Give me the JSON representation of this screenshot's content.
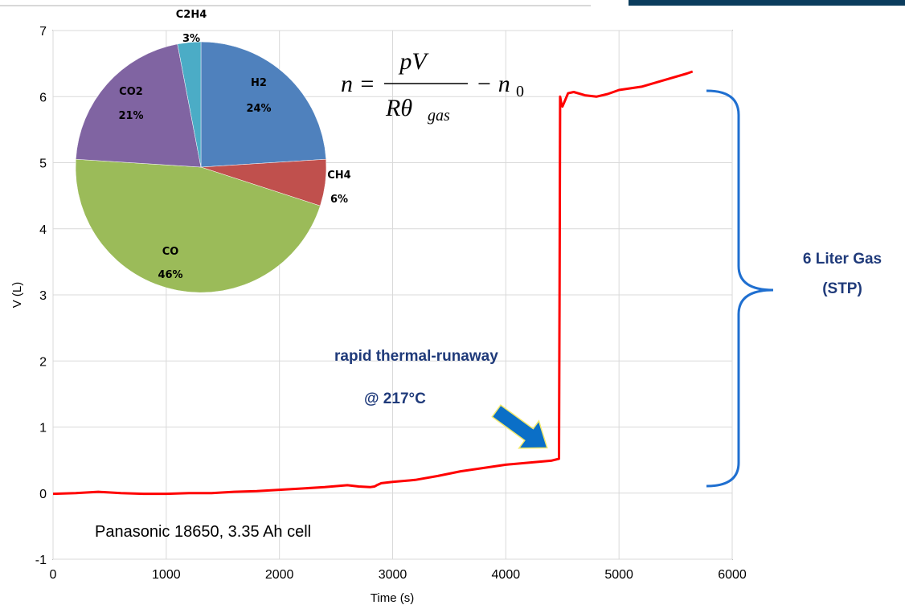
{
  "chart_data": {
    "type": "line",
    "title": "",
    "xlabel": "Time (s)",
    "ylabel": "V (L)",
    "xlim": [
      0,
      6000
    ],
    "ylim": [
      -1,
      7
    ],
    "x_ticks": [
      "0",
      "1000",
      "2000",
      "3000",
      "4000",
      "5000",
      "6000"
    ],
    "y_ticks": [
      "-1",
      "0",
      "1",
      "2",
      "3",
      "4",
      "5",
      "6",
      "7"
    ],
    "grid": true,
    "series": [
      {
        "color": "#ff0000",
        "x": [
          0,
          200,
          400,
          600,
          800,
          1000,
          1200,
          1400,
          1600,
          1800,
          2000,
          2200,
          2400,
          2600,
          2700,
          2800,
          2840,
          2860,
          2900,
          3000,
          3200,
          3400,
          3600,
          3800,
          4000,
          4200,
          4400,
          4470,
          4475,
          4480,
          4490,
          4500,
          4550,
          4600,
          4700,
          4800,
          4900,
          5000,
          5200,
          5400,
          5600,
          5650
        ],
        "y": [
          -0.01,
          0.0,
          0.02,
          0.0,
          -0.01,
          -0.01,
          0.0,
          0.0,
          0.02,
          0.03,
          0.05,
          0.07,
          0.09,
          0.12,
          0.1,
          0.09,
          0.1,
          0.12,
          0.15,
          0.17,
          0.2,
          0.26,
          0.33,
          0.38,
          0.43,
          0.46,
          0.49,
          0.52,
          3.0,
          6.0,
          5.9,
          5.85,
          6.05,
          6.07,
          6.02,
          6.0,
          6.04,
          6.1,
          6.15,
          6.25,
          6.35,
          6.38
        ]
      }
    ],
    "inset_pie": {
      "slices": [
        {
          "label": "H2",
          "pct": "24%",
          "value": 24,
          "color": "#4f81bd"
        },
        {
          "label": "CH4",
          "pct": "6%",
          "value": 6,
          "color": "#c0504d"
        },
        {
          "label": "CO",
          "pct": "46%",
          "value": 46,
          "color": "#9bbb59"
        },
        {
          "label": "CO2",
          "pct": "21%",
          "value": 21,
          "color": "#8064a2"
        },
        {
          "label": "C2H4",
          "pct": "3%",
          "value": 3,
          "color": "#4bacc6"
        }
      ]
    },
    "formula": {
      "lhs": "n =",
      "num": "pV",
      "den_main": "Rθ",
      "den_sub": "gas",
      "rhs": "− n",
      "rhs_sub": "0"
    },
    "annotations": {
      "runaway_line1": "rapid thermal-runaway",
      "runaway_line2": "@ 217°C",
      "gas_line1": "6 Liter Gas",
      "gas_line2": "(STP)",
      "cell": "Panasonic 18650, 3.35 Ah cell"
    },
    "colors": {
      "curve": "#ff0000",
      "brace": "#1f6fd0",
      "arrow": "#0b6fc7",
      "annotation": "#1f3a7a"
    }
  }
}
